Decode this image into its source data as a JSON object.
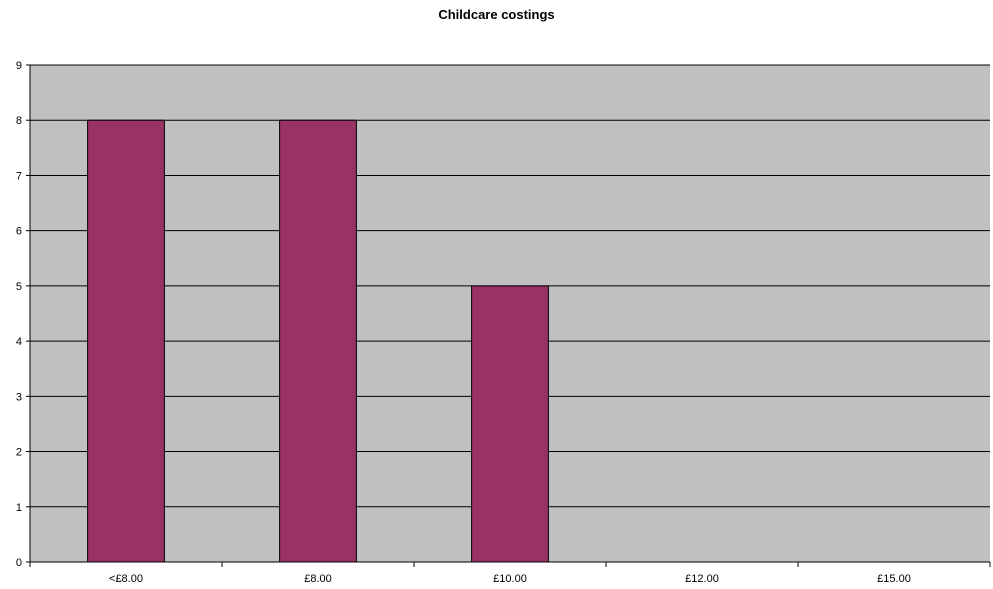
{
  "chart_data": {
    "type": "bar",
    "title": "Childcare costings",
    "xlabel": "",
    "ylabel": "",
    "categories": [
      "<£8.00",
      "£8.00",
      "£10.00",
      "£12.00",
      "£15.00"
    ],
    "values": [
      8,
      8,
      5,
      0,
      0
    ],
    "ylim": [
      0,
      9
    ],
    "yticks": [
      "0",
      "1",
      "2",
      "3",
      "4",
      "5",
      "6",
      "7",
      "8",
      "9"
    ],
    "grid": true,
    "legend": "none"
  },
  "colors": {
    "plot_background": "#c0c0c0",
    "bar_fill": "#993366",
    "bar_stroke": "#000000",
    "gridline": "#000000"
  }
}
